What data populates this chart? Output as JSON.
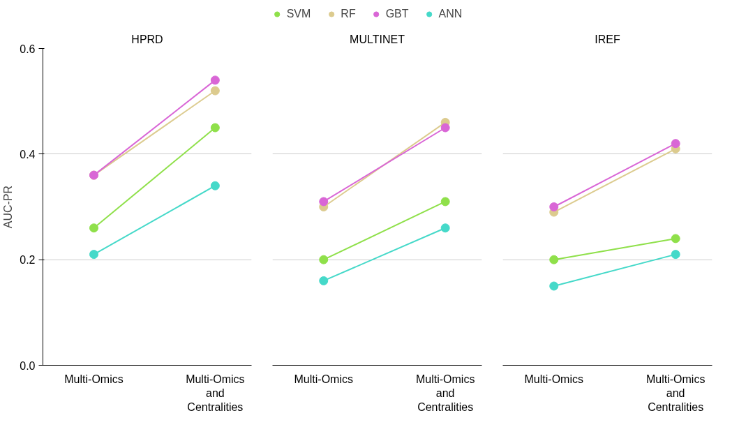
{
  "chart_data": [
    {
      "type": "line",
      "title": "HPRD",
      "ylabel": "AUC-PR",
      "categories": [
        "Multi-Omics",
        "Multi-Omics\nand\nCentralities"
      ],
      "ylim": [
        0,
        0.6
      ],
      "yticks": [
        {
          "value": 0,
          "label": "0.0"
        },
        0.2,
        0.4,
        0.6
      ],
      "grid": "y",
      "legend": "top",
      "marker": "circle",
      "series": [
        {
          "name": "SVM",
          "color": "#8fe04a",
          "values": [
            0.26,
            0.45
          ]
        },
        {
          "name": "RF",
          "color": "#dccb8e",
          "values": [
            0.36,
            0.52
          ]
        },
        {
          "name": "GBT",
          "color": "#d966d6",
          "values": [
            0.36,
            0.54
          ]
        },
        {
          "name": "ANN",
          "color": "#45d9c9",
          "values": [
            0.21,
            0.34
          ]
        }
      ]
    },
    {
      "type": "line",
      "title": "MULTINET",
      "categories": [
        "Multi-Omics",
        "Multi-Omics\nand\nCentralities"
      ],
      "ylim": [
        0,
        0.6
      ],
      "yticks": [
        0,
        0.2,
        0.4,
        0.6
      ],
      "tick_labels": "x",
      "grid": "y",
      "marker": "circle",
      "series": [
        {
          "color": "#8fe04a",
          "values": [
            0.2,
            0.31
          ]
        },
        {
          "color": "#dccb8e",
          "values": [
            0.3,
            0.46
          ]
        },
        {
          "color": "#d966d6",
          "values": [
            0.31,
            0.45
          ]
        },
        {
          "color": "#45d9c9",
          "values": [
            0.16,
            0.26
          ]
        }
      ]
    },
    {
      "type": "line",
      "title": "IREF",
      "categories": [
        "Multi-Omics",
        "Multi-Omics\nand\nCentralities"
      ],
      "ylim": [
        0,
        0.6
      ],
      "yticks": [
        0,
        0.2,
        0.4,
        0.6
      ],
      "tick_labels": "x",
      "grid": "y",
      "marker": "circle",
      "series": [
        {
          "color": "#8fe04a",
          "values": [
            0.2,
            0.24
          ]
        },
        {
          "color": "#dccb8e",
          "values": [
            0.29,
            0.41
          ]
        },
        {
          "color": "#d966d6",
          "values": [
            0.3,
            0.42
          ]
        },
        {
          "color": "#45d9c9",
          "values": [
            0.15,
            0.21
          ]
        }
      ]
    }
  ]
}
